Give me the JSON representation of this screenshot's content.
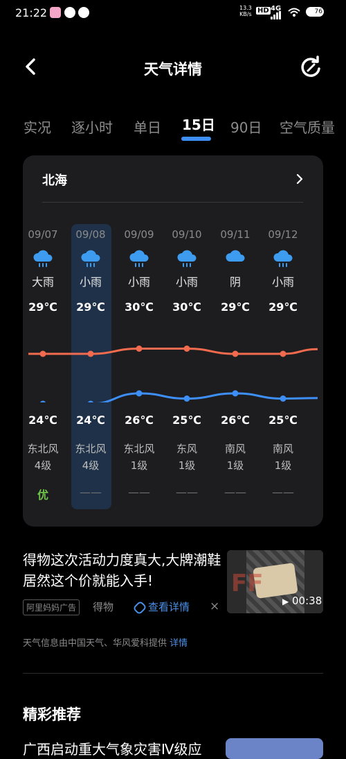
{
  "status_bar": {
    "time": "21:22",
    "net_speed_top": "13.3",
    "net_speed_bottom": "KB/s",
    "hd": "HD",
    "signal": "4G",
    "battery": "76"
  },
  "header": {
    "title": "天气详情",
    "back_icon": "back-arrow-icon",
    "refresh_icon": "refresh-icon"
  },
  "tabs": [
    {
      "label": "实况"
    },
    {
      "label": "逐小时"
    },
    {
      "label": "单日"
    },
    {
      "label": "15日",
      "active": true
    },
    {
      "label": "90日"
    },
    {
      "label": "空气质量"
    }
  ],
  "card": {
    "city": "北海",
    "days": [
      {
        "date": "09/07",
        "cond": "大雨",
        "hi": "29℃",
        "lo": "24℃",
        "wind_dir": "东北风",
        "wind_level": "4级",
        "air": "优",
        "icon": "rain-cloud-icon"
      },
      {
        "date": "09/08",
        "cond": "小雨",
        "hi": "29℃",
        "lo": "24℃",
        "wind_dir": "东北风",
        "wind_level": "4级",
        "air": "——",
        "icon": "rain-cloud-icon"
      },
      {
        "date": "09/09",
        "cond": "小雨",
        "hi": "30℃",
        "lo": "26℃",
        "wind_dir": "东北风",
        "wind_level": "1级",
        "air": "——",
        "icon": "rain-cloud-icon"
      },
      {
        "date": "09/10",
        "cond": "小雨",
        "hi": "30℃",
        "lo": "25℃",
        "wind_dir": "东风",
        "wind_level": "1级",
        "air": "——",
        "icon": "rain-cloud-icon"
      },
      {
        "date": "09/11",
        "cond": "阴",
        "hi": "29℃",
        "lo": "26℃",
        "wind_dir": "南风",
        "wind_level": "1级",
        "air": "——",
        "icon": "cloud-icon"
      },
      {
        "date": "09/12",
        "cond": "小雨",
        "hi": "29℃",
        "lo": "25℃",
        "wind_dir": "南风",
        "wind_level": "1级",
        "air": "——",
        "icon": "rain-cloud-icon"
      }
    ],
    "hi_values": [
      29,
      29,
      30,
      30,
      29,
      29
    ],
    "lo_values": [
      24,
      24,
      26,
      25,
      26,
      25
    ],
    "hi_color": "#f26b4f",
    "lo_color": "#3e8ff5",
    "air_good_color": "#6fc34b"
  },
  "ad": {
    "text": "得物这次活动力度真大,大牌潮鞋居然这个价就能入手!",
    "tag": "阿里妈妈广告",
    "source": "得物",
    "link": "查看详情",
    "duration": "00:38"
  },
  "footer": {
    "provider": "天气信息由中国天气、华风爱科提供",
    "provider_link": "详情",
    "rec_title": "精彩推荐",
    "rec_item": "广西启动重大气象灾害Ⅳ级应"
  }
}
